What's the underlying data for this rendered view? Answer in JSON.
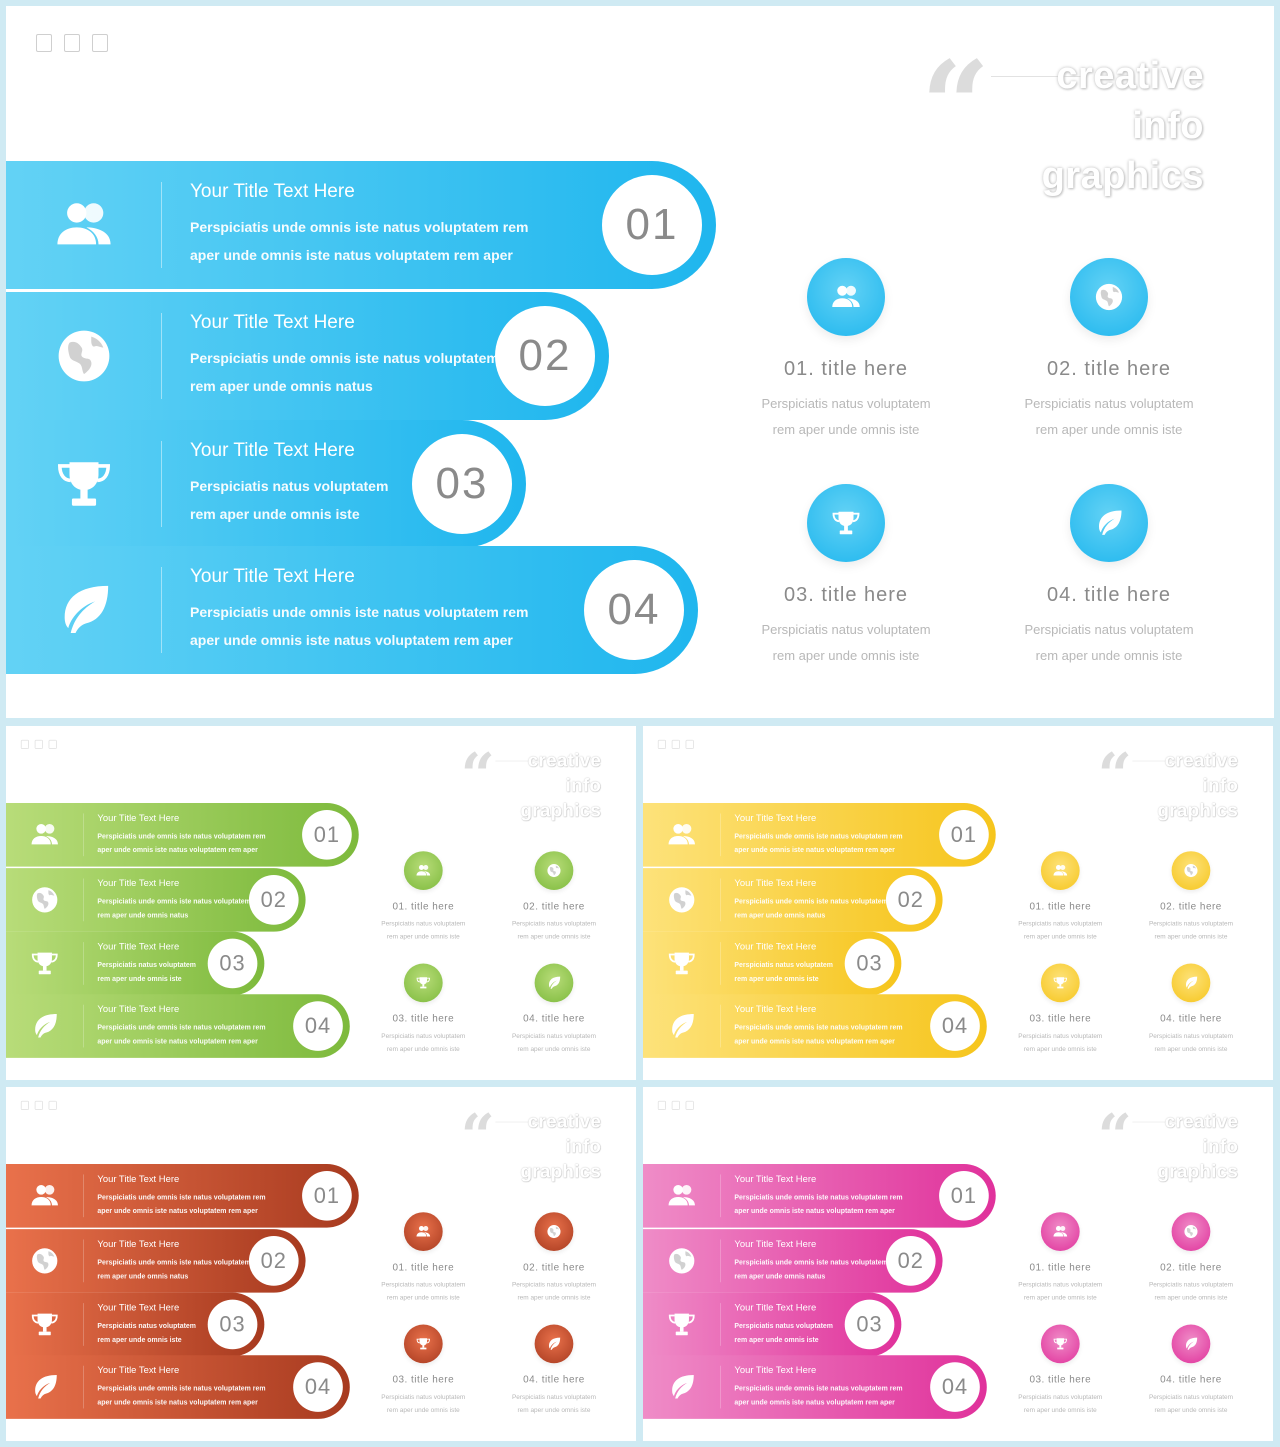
{
  "heading": {
    "quote": "“",
    "lines": [
      "creative",
      "info",
      "graphics"
    ]
  },
  "bands": [
    {
      "number": "01",
      "icon": "users-icon",
      "title": "Your Title Text Here",
      "desc_line1": "Perspiciatis unde omnis  iste natus voluptatem rem",
      "desc_line2": "aper unde omnis iste natus voluptatem rem aper"
    },
    {
      "number": "02",
      "icon": "globe-icon",
      "title": "Your Title Text Here",
      "desc_line1": "Perspiciatis unde omnis  iste natus voluptatem",
      "desc_line2": "rem aper unde omnis natus"
    },
    {
      "number": "03",
      "icon": "trophy-icon",
      "title": "Your Title Text Here",
      "desc_line1": "Perspiciatis natus voluptatem",
      "desc_line2": "rem aper unde omnis iste"
    },
    {
      "number": "04",
      "icon": "leaf-icon",
      "title": "Your Title Text Here",
      "desc_line1": "Perspiciatis unde omnis  iste natus voluptatem rem",
      "desc_line2": "aper unde omnis iste natus voluptatem rem aper"
    }
  ],
  "cards": [
    {
      "num": "01",
      "title": "title here",
      "icon": "users-icon",
      "desc_line1": "Perspiciatis natus voluptatem",
      "desc_line2": "rem aper unde omnis iste"
    },
    {
      "num": "02",
      "title": "title here",
      "icon": "globe-icon",
      "desc_line1": "Perspiciatis natus voluptatem",
      "desc_line2": "rem aper unde omnis iste"
    },
    {
      "num": "03",
      "title": "title here",
      "icon": "trophy-icon",
      "desc_line1": "Perspiciatis natus voluptatem",
      "desc_line2": "rem aper unde omnis iste"
    },
    {
      "num": "04",
      "title": "title here",
      "icon": "leaf-icon",
      "desc_line1": "Perspiciatis natus voluptatem",
      "desc_line2": "rem aper unde omnis iste"
    }
  ],
  "themes": [
    {
      "name": "blue",
      "light": "#63d2f5",
      "dark": "#1fb6ee"
    },
    {
      "name": "green",
      "light": "#b8dc79",
      "dark": "#7dba3c"
    },
    {
      "name": "yellow",
      "light": "#fde27a",
      "dark": "#f6c51c"
    },
    {
      "name": "red",
      "light": "#e9714b",
      "dark": "#a73a1f"
    },
    {
      "name": "pink",
      "light": "#ef8cc7",
      "dark": "#e0319b"
    }
  ],
  "colors": {
    "background": "#cfeaf3",
    "slide": "#ffffff",
    "number_text": "#8a8a8a",
    "card_text": "#b8b8b8"
  }
}
